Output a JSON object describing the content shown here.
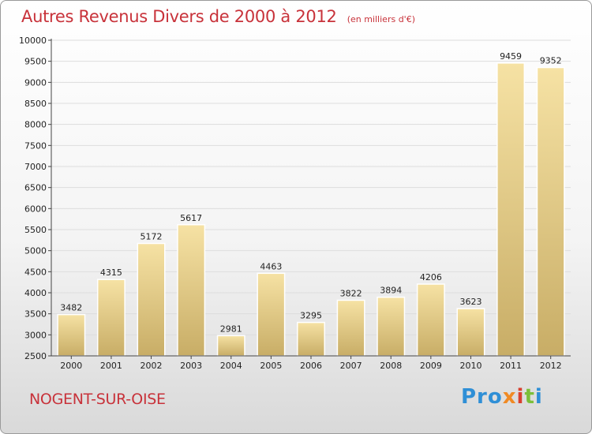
{
  "chart_data": {
    "type": "bar",
    "title": "Autres Revenus Divers de 2000 à 2012",
    "subtitle": "(en milliers d'€)",
    "categories": [
      "2000",
      "2001",
      "2002",
      "2003",
      "2004",
      "2005",
      "2006",
      "2007",
      "2008",
      "2009",
      "2010",
      "2011",
      "2012"
    ],
    "values": [
      3482,
      4315,
      5172,
      5617,
      2981,
      4463,
      3295,
      3822,
      3894,
      4206,
      3623,
      9459,
      9352
    ],
    "ylim": [
      2500,
      10000
    ],
    "yticks": [
      2500,
      3000,
      3500,
      4000,
      4500,
      5000,
      5500,
      6000,
      6500,
      7000,
      7500,
      8000,
      8500,
      9000,
      9500,
      10000
    ],
    "grid": true,
    "bar_color": "#e6c97e",
    "grid_color": "#dddddd"
  },
  "footer": {
    "city": "NOGENT-SUR-OISE",
    "logo": [
      "Pro",
      "x",
      "i",
      "t",
      "i"
    ]
  }
}
